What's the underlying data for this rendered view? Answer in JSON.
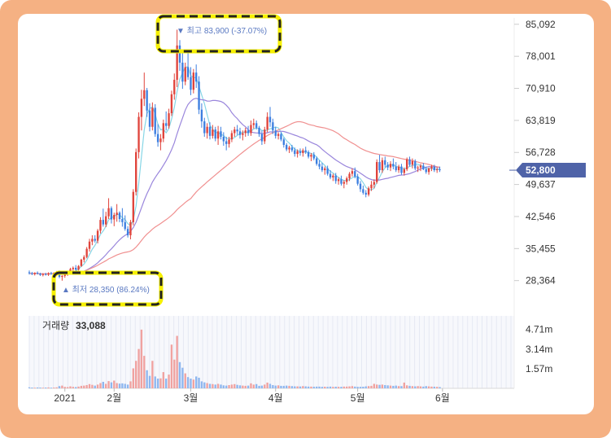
{
  "chart_data": {
    "type": "candlestick",
    "price_axis": {
      "ticks": [
        85092,
        78001,
        70910,
        63819,
        56728,
        49637,
        42546,
        35455,
        28364
      ],
      "labels": [
        "85,092",
        "78,001",
        "70,910",
        "63,819",
        "56,728",
        "49,637",
        "42,546",
        "35,455",
        "28,364"
      ],
      "range": [
        22000,
        86500
      ]
    },
    "x_axis_labels": [
      {
        "label": "2021",
        "day": 13
      },
      {
        "label": "2월",
        "day": 31
      },
      {
        "label": "3월",
        "day": 59
      },
      {
        "label": "4월",
        "day": 90
      },
      {
        "label": "5월",
        "day": 120
      },
      {
        "label": "6월",
        "day": 151
      }
    ],
    "x_range_days": [
      0,
      176
    ],
    "current_price": {
      "value": 52800,
      "label": "52,800"
    },
    "high_annotation": {
      "text": "▼ 최고 83,900 (-37.07%)",
      "value": 83900,
      "day": 53
    },
    "low_annotation": {
      "text": "▲ 최저 28,350 (86.24%)",
      "value": 28350,
      "day": 13
    },
    "volume": {
      "title": "거래량",
      "value_label": "33,088",
      "ticks": [
        4.71,
        3.14,
        1.57
      ],
      "tick_labels": [
        "4.71m",
        "3.14m",
        "1.57m"
      ],
      "unit": "m",
      "max": 5.8
    },
    "colors": {
      "up": "#e0443c",
      "down": "#3d7fe0",
      "ma5": "#87d6e6",
      "ma20": "#9a86dc",
      "ma60": "#f09090",
      "badge": "#4f63a8",
      "frame": "#f5b183",
      "highlight": "#f6f000"
    },
    "candles": [
      [
        0,
        30200,
        30600,
        29700,
        30000
      ],
      [
        1,
        30000,
        30300,
        29600,
        29800
      ],
      [
        2,
        29800,
        30200,
        29500,
        30100
      ],
      [
        3,
        30100,
        30400,
        29700,
        29900
      ],
      [
        4,
        29900,
        30100,
        29400,
        29600
      ],
      [
        5,
        29600,
        30000,
        29300,
        29800
      ],
      [
        6,
        29800,
        30100,
        29500,
        29700
      ],
      [
        7,
        29700,
        30200,
        29400,
        30000
      ],
      [
        8,
        30000,
        30300,
        29700,
        29900
      ],
      [
        9,
        29900,
        30200,
        29600,
        30100
      ],
      [
        10,
        30100,
        30500,
        29800,
        30300
      ],
      [
        11,
        30300,
        30600,
        28900,
        29200
      ],
      [
        12,
        29200,
        29600,
        28350,
        29400
      ],
      [
        13,
        29400,
        29900,
        29000,
        29700
      ],
      [
        14,
        29700,
        30300,
        29400,
        30100
      ],
      [
        15,
        30100,
        31200,
        29900,
        30900
      ],
      [
        16,
        30900,
        31500,
        30300,
        31200
      ],
      [
        17,
        31200,
        31800,
        30500,
        30800
      ],
      [
        18,
        30800,
        31800,
        30600,
        31600
      ],
      [
        19,
        31600,
        33200,
        31400,
        33000
      ],
      [
        20,
        33000,
        34000,
        32400,
        33600
      ],
      [
        21,
        33600,
        35800,
        33300,
        35400
      ],
      [
        22,
        35400,
        37600,
        34800,
        37000
      ],
      [
        23,
        37000,
        38400,
        36200,
        37600
      ],
      [
        24,
        37600,
        38400,
        36800,
        37200
      ],
      [
        25,
        37200,
        39800,
        36600,
        39400
      ],
      [
        26,
        39400,
        42400,
        38800,
        41800
      ],
      [
        27,
        41800,
        44300,
        40300,
        40800
      ],
      [
        28,
        40800,
        43600,
        40200,
        42600
      ],
      [
        29,
        42600,
        46600,
        42000,
        44400
      ],
      [
        30,
        44400,
        44800,
        41000,
        41900
      ],
      [
        31,
        41900,
        43400,
        40400,
        42900
      ],
      [
        32,
        42900,
        45300,
        41400,
        43400
      ],
      [
        33,
        43400,
        43700,
        41300,
        42000
      ],
      [
        34,
        42000,
        44400,
        40300,
        41300
      ],
      [
        35,
        41300,
        42800,
        39400,
        39800
      ],
      [
        36,
        39800,
        40400,
        37900,
        38400
      ],
      [
        37,
        38400,
        41800,
        37500,
        41300
      ],
      [
        38,
        41300,
        48600,
        40600,
        48000
      ],
      [
        39,
        48000,
        57600,
        47200,
        56800
      ],
      [
        40,
        56800,
        65600,
        55400,
        64600
      ],
      [
        41,
        64600,
        70600,
        61600,
        68600
      ],
      [
        42,
        68600,
        74400,
        67000,
        70500
      ],
      [
        43,
        70500,
        71000,
        64600,
        66000
      ],
      [
        44,
        66000,
        67600,
        61400,
        62400
      ],
      [
        45,
        62400,
        67800,
        61600,
        66600
      ],
      [
        46,
        66600,
        67400,
        60200,
        60800
      ],
      [
        47,
        60800,
        63000,
        58000,
        59000
      ],
      [
        48,
        59000,
        60800,
        57200,
        59800
      ],
      [
        49,
        59800,
        64000,
        59000,
        63200
      ],
      [
        50,
        63200,
        65800,
        61600,
        62600
      ],
      [
        51,
        62600,
        66400,
        62000,
        65400
      ],
      [
        52,
        65400,
        70400,
        64800,
        69600
      ],
      [
        53,
        69600,
        74200,
        68400,
        72800
      ],
      [
        54,
        72800,
        83900,
        71200,
        80400
      ],
      [
        55,
        80400,
        81600,
        74800,
        76600
      ],
      [
        56,
        76600,
        78800,
        70800,
        72400
      ],
      [
        57,
        72400,
        76600,
        71600,
        75600
      ],
      [
        58,
        75600,
        78800,
        72800,
        73400
      ],
      [
        59,
        73400,
        75600,
        69400,
        70600
      ],
      [
        60,
        70600,
        75200,
        69800,
        74400
      ],
      [
        61,
        74400,
        76200,
        71000,
        72400
      ],
      [
        62,
        72400,
        73600,
        65200,
        66200
      ],
      [
        63,
        66200,
        67600,
        62200,
        63600
      ],
      [
        64,
        63600,
        64400,
        60200,
        61000
      ],
      [
        65,
        61000,
        63200,
        59800,
        62400
      ],
      [
        66,
        62400,
        63400,
        59600,
        60400
      ],
      [
        67,
        60400,
        62800,
        59800,
        61800
      ],
      [
        68,
        61800,
        62400,
        59200,
        59800
      ],
      [
        69,
        59800,
        62600,
        58400,
        61400
      ],
      [
        70,
        61400,
        62400,
        59600,
        60200
      ],
      [
        71,
        60200,
        61200,
        58200,
        59200
      ],
      [
        72,
        59200,
        60200,
        57200,
        58600
      ],
      [
        73,
        58600,
        60200,
        57800,
        59600
      ],
      [
        74,
        59600,
        61600,
        59000,
        61000
      ],
      [
        75,
        61000,
        62400,
        60200,
        61800
      ],
      [
        76,
        61800,
        62800,
        60600,
        61400
      ],
      [
        77,
        61400,
        62200,
        59800,
        60600
      ],
      [
        78,
        60600,
        61600,
        59400,
        61000
      ],
      [
        79,
        61000,
        62200,
        60200,
        61600
      ],
      [
        80,
        61600,
        62600,
        60400,
        61000
      ],
      [
        81,
        61000,
        63800,
        60400,
        62800
      ],
      [
        82,
        62800,
        64200,
        62000,
        63200
      ],
      [
        83,
        63200,
        63800,
        61800,
        62200
      ],
      [
        84,
        62200,
        62600,
        60200,
        60800
      ],
      [
        85,
        60800,
        61600,
        58400,
        59200
      ],
      [
        86,
        59200,
        62400,
        58600,
        61800
      ],
      [
        87,
        61800,
        65600,
        61200,
        64600
      ],
      [
        88,
        64600,
        66800,
        62400,
        63400
      ],
      [
        89,
        63400,
        64200,
        60800,
        61600
      ],
      [
        90,
        61600,
        62400,
        59800,
        60400
      ],
      [
        91,
        60400,
        61200,
        59600,
        60800
      ],
      [
        92,
        60800,
        61200,
        59200,
        59600
      ],
      [
        93,
        59600,
        60000,
        57800,
        58400
      ],
      [
        94,
        58400,
        58800,
        57000,
        57400
      ],
      [
        95,
        57400,
        58200,
        56600,
        57800
      ],
      [
        96,
        57800,
        58400,
        56800,
        57200
      ],
      [
        97,
        57200,
        57800,
        55800,
        56400
      ],
      [
        98,
        56400,
        57400,
        55600,
        57000
      ],
      [
        99,
        57000,
        57600,
        56000,
        56600
      ],
      [
        100,
        56600,
        57600,
        55800,
        57200
      ],
      [
        101,
        57200,
        58000,
        56400,
        56800
      ],
      [
        102,
        56800,
        57200,
        55400,
        55800
      ],
      [
        103,
        55800,
        56600,
        54800,
        56200
      ],
      [
        104,
        56200,
        56800,
        55000,
        55400
      ],
      [
        105,
        55400,
        55800,
        53800,
        54200
      ],
      [
        106,
        54200,
        55000,
        53000,
        53600
      ],
      [
        107,
        53600,
        54400,
        52400,
        52800
      ],
      [
        108,
        52800,
        53600,
        51800,
        53200
      ],
      [
        109,
        53200,
        53800,
        51600,
        52000
      ],
      [
        110,
        52000,
        52800,
        50800,
        51200
      ],
      [
        111,
        51200,
        52000,
        50400,
        51600
      ],
      [
        112,
        51600,
        52200,
        49800,
        50400
      ],
      [
        113,
        50400,
        51200,
        49600,
        50800
      ],
      [
        114,
        50800,
        51600,
        49400,
        49800
      ],
      [
        115,
        49800,
        50600,
        48800,
        50200
      ],
      [
        116,
        50200,
        51400,
        49600,
        51000
      ],
      [
        117,
        51000,
        52400,
        50400,
        52000
      ],
      [
        118,
        52000,
        53200,
        51400,
        52600
      ],
      [
        119,
        52600,
        53400,
        51000,
        51400
      ],
      [
        120,
        51400,
        52000,
        49400,
        49800
      ],
      [
        121,
        49800,
        50400,
        48000,
        48600
      ],
      [
        122,
        48600,
        49400,
        47400,
        47800
      ],
      [
        123,
        47800,
        48400,
        46800,
        47400
      ],
      [
        124,
        47400,
        49200,
        47000,
        48800
      ],
      [
        125,
        48800,
        50400,
        48200,
        49600
      ],
      [
        126,
        49600,
        50800,
        48800,
        50200
      ],
      [
        127,
        50200,
        55200,
        49800,
        54600
      ],
      [
        128,
        54600,
        56200,
        52200,
        52800
      ],
      [
        129,
        52800,
        55600,
        52200,
        55000
      ],
      [
        130,
        55000,
        55800,
        53400,
        54000
      ],
      [
        131,
        54000,
        54600,
        52800,
        53400
      ],
      [
        132,
        53400,
        54800,
        52600,
        54200
      ],
      [
        133,
        54200,
        55400,
        53000,
        53600
      ],
      [
        134,
        53600,
        54600,
        52400,
        52800
      ],
      [
        135,
        52800,
        54000,
        52200,
        53600
      ],
      [
        136,
        53600,
        54200,
        51800,
        52200
      ],
      [
        137,
        52200,
        53400,
        51600,
        53000
      ],
      [
        138,
        53000,
        55600,
        52600,
        55200
      ],
      [
        139,
        55200,
        55800,
        53600,
        54000
      ],
      [
        140,
        54000,
        55400,
        53200,
        54800
      ],
      [
        141,
        54800,
        55200,
        52800,
        53200
      ],
      [
        142,
        53200,
        53800,
        52400,
        53400
      ],
      [
        143,
        53400,
        54200,
        52600,
        53800
      ],
      [
        144,
        53800,
        54400,
        52800,
        53000
      ],
      [
        145,
        53000,
        53600,
        52000,
        52400
      ],
      [
        146,
        52400,
        53400,
        51800,
        53200
      ],
      [
        147,
        53200,
        54000,
        52600,
        53600
      ],
      [
        148,
        53600,
        54000,
        52400,
        52800
      ],
      [
        149,
        52800,
        53400,
        52200,
        53000
      ],
      [
        150,
        53000,
        53600,
        52400,
        52800
      ]
    ],
    "volumes": [
      0.08,
      0.06,
      0.05,
      0.07,
      0.06,
      0.05,
      0.06,
      0.07,
      0.05,
      0.06,
      0.08,
      0.18,
      0.22,
      0.12,
      0.1,
      0.16,
      0.12,
      0.1,
      0.14,
      0.2,
      0.22,
      0.26,
      0.34,
      0.28,
      0.22,
      0.3,
      0.42,
      0.52,
      0.36,
      0.58,
      0.48,
      0.62,
      0.42,
      0.38,
      0.4,
      0.36,
      0.3,
      0.56,
      1.6,
      2.2,
      3.15,
      4.7,
      2.6,
      1.45,
      1.0,
      2.2,
      0.95,
      0.78,
      0.8,
      1.3,
      0.78,
      1.1,
      3.5,
      2.3,
      4.2,
      2.1,
      1.65,
      1.2,
      0.9,
      0.78,
      0.7,
      0.95,
      0.85,
      0.56,
      0.48,
      0.42,
      0.36,
      0.34,
      0.3,
      0.36,
      0.3,
      0.24,
      0.22,
      0.26,
      0.3,
      0.34,
      0.28,
      0.24,
      0.22,
      0.2,
      0.22,
      0.4,
      0.3,
      0.34,
      0.2,
      0.22,
      0.3,
      0.46,
      0.36,
      0.26,
      0.22,
      0.24,
      0.2,
      0.2,
      0.22,
      0.2,
      0.18,
      0.16,
      0.16,
      0.15,
      0.18,
      0.16,
      0.14,
      0.14,
      0.13,
      0.14,
      0.14,
      0.12,
      0.13,
      0.12,
      0.14,
      0.12,
      0.13,
      0.12,
      0.12,
      0.14,
      0.14,
      0.16,
      0.18,
      0.14,
      0.12,
      0.12,
      0.13,
      0.16,
      0.18,
      0.2,
      0.36,
      0.3,
      0.28,
      0.3,
      0.26,
      0.24,
      0.22,
      0.2,
      0.22,
      0.18,
      0.18,
      0.46,
      0.24,
      0.2,
      0.18,
      0.16,
      0.18,
      0.16,
      0.14,
      0.18,
      0.16,
      0.14,
      0.13,
      0.12,
      0.1
    ]
  }
}
